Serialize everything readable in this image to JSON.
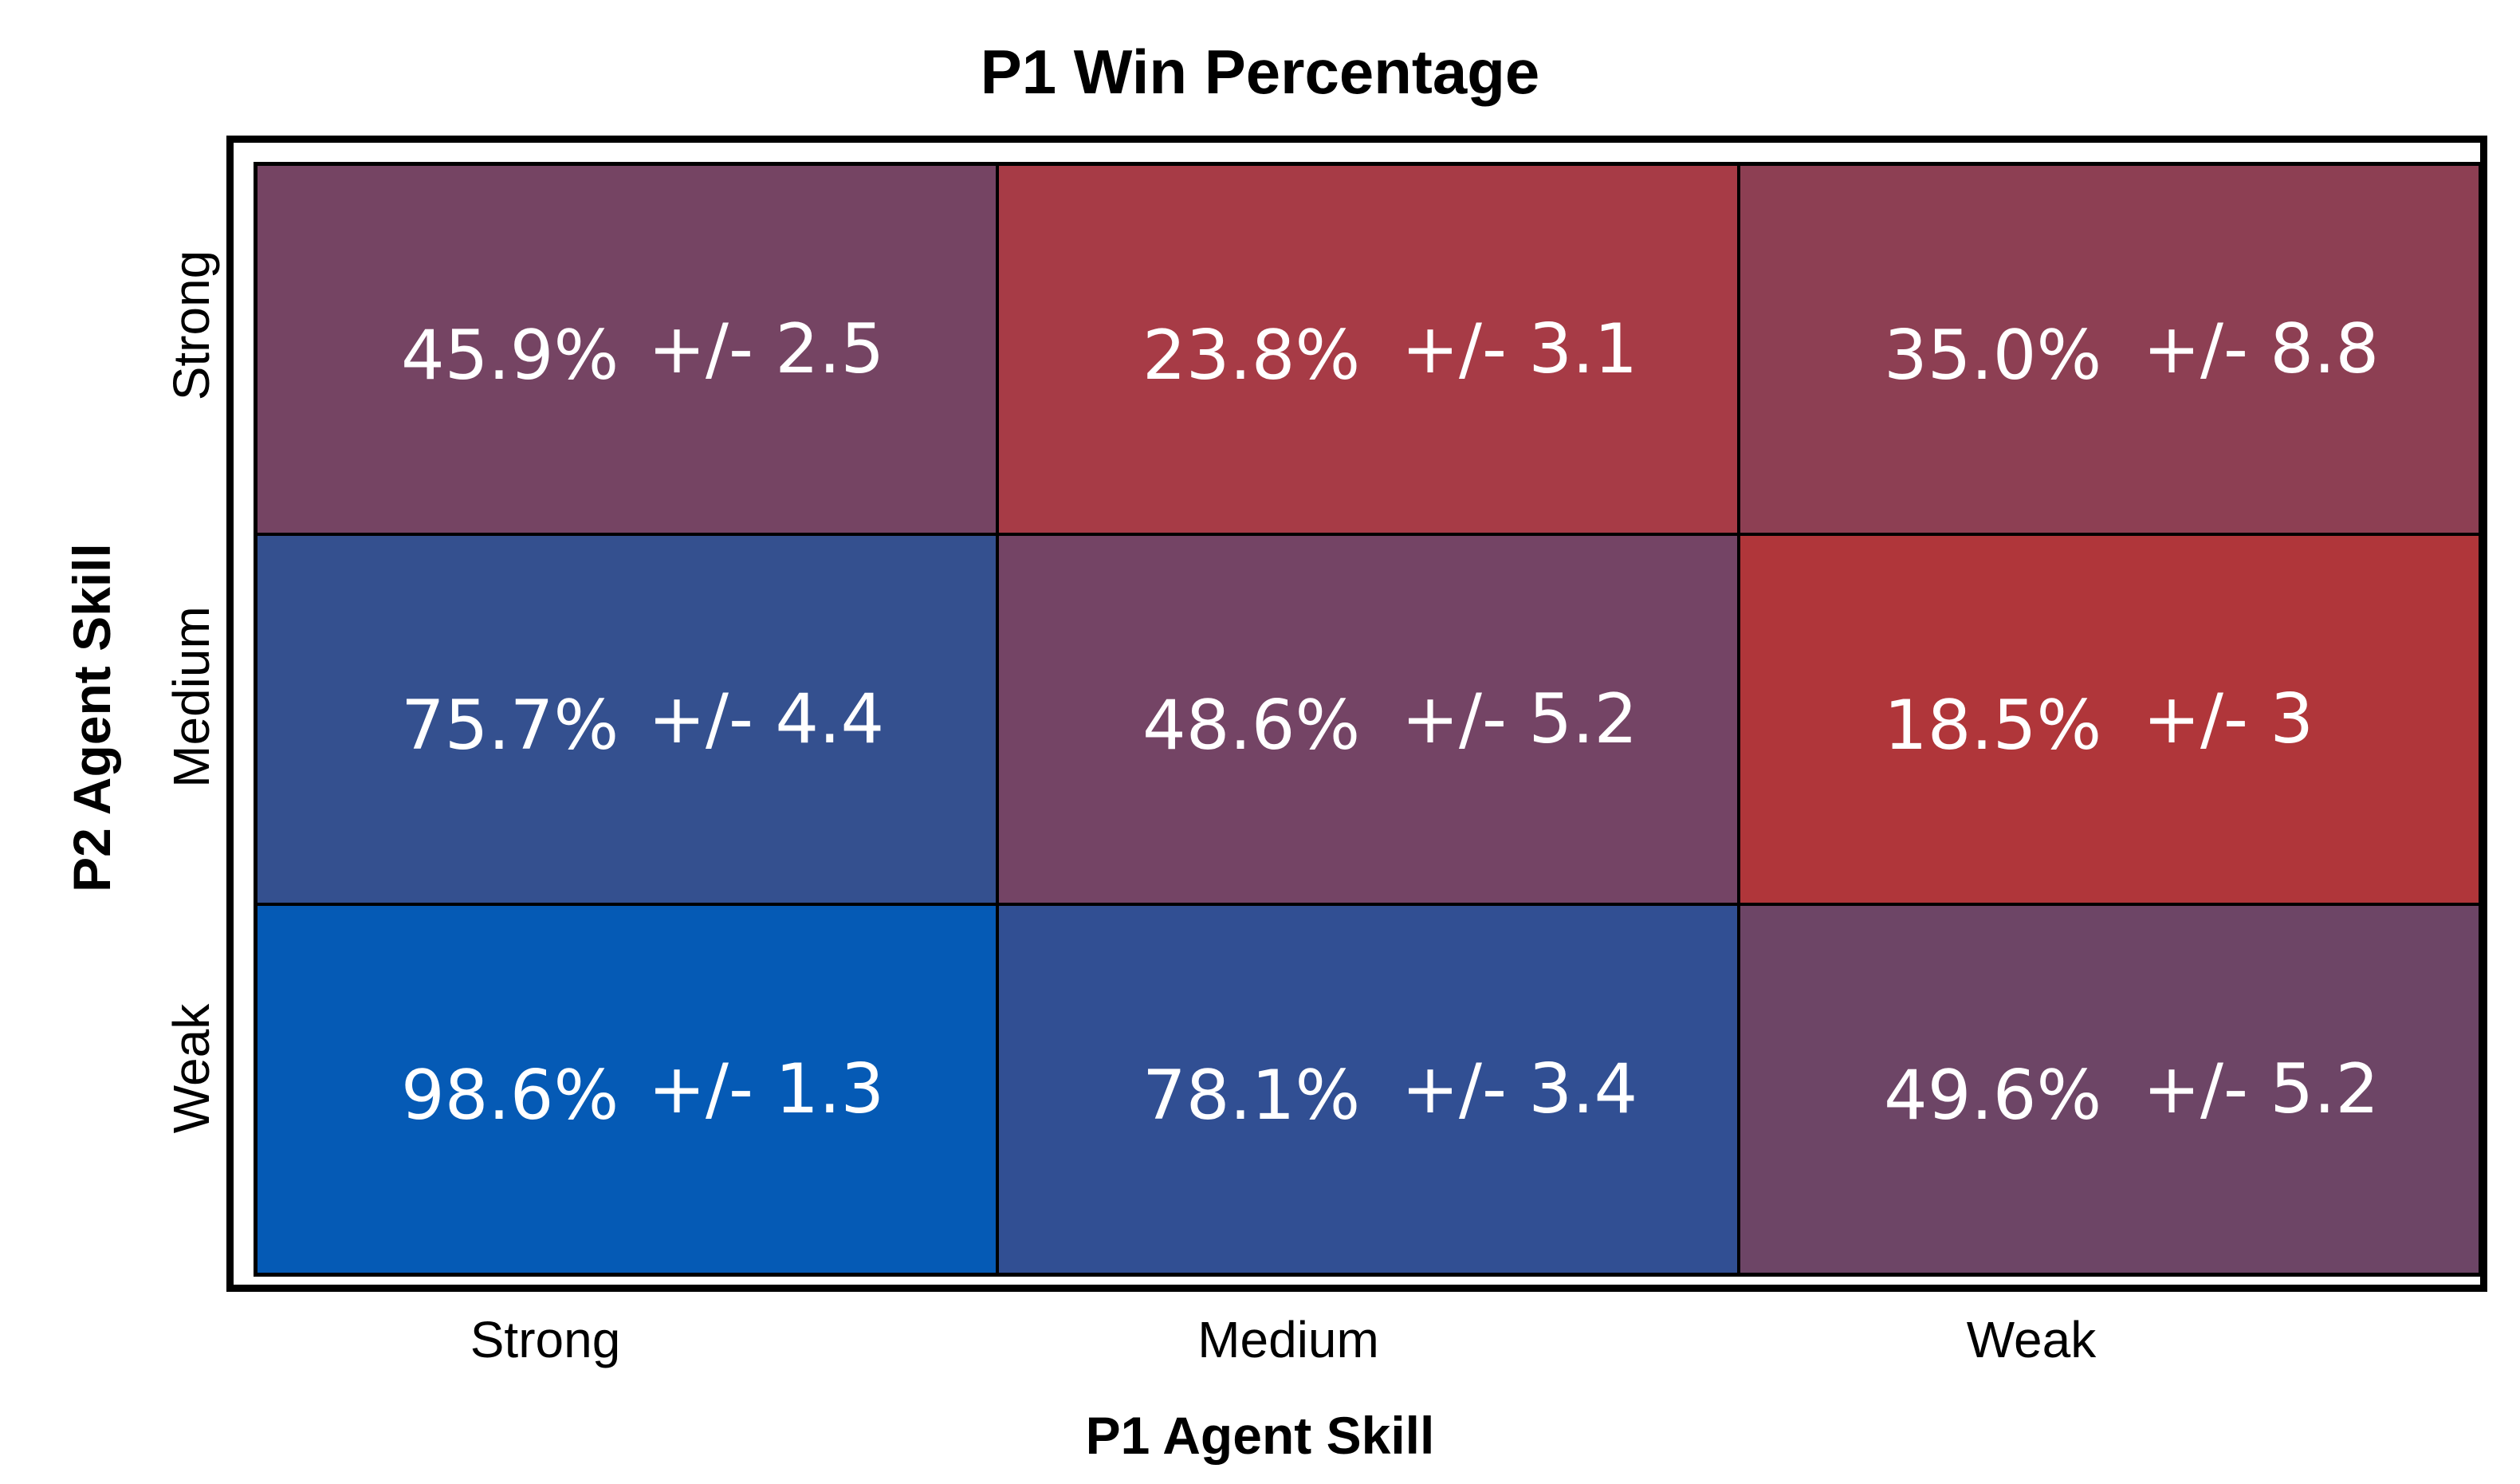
{
  "chart_data": {
    "type": "heatmap",
    "title": "P1 Win Percentage",
    "xlabel": "P1 Agent Skill",
    "ylabel": "P2 Agent Skill",
    "x_categories": [
      "Strong",
      "Medium",
      "Weak"
    ],
    "y_categories": [
      "Strong",
      "Medium",
      "Weak"
    ],
    "values": [
      [
        45.9,
        23.8,
        35.0
      ],
      [
        75.7,
        48.6,
        18.5
      ],
      [
        98.6,
        78.1,
        49.6
      ]
    ],
    "errors": [
      [
        2.5,
        3.1,
        8.8
      ],
      [
        4.4,
        5.2,
        3
      ],
      [
        1.3,
        3.4,
        5.2
      ]
    ],
    "cell_labels": [
      [
        {
          "pct": "45.9%",
          "err": "+/- 2.5"
        },
        {
          "pct": "23.8%",
          "err": "+/- 3.1"
        },
        {
          "pct": "35.0%",
          "err": "+/- 8.8"
        }
      ],
      [
        {
          "pct": "75.7%",
          "err": "+/- 4.4"
        },
        {
          "pct": "48.6%",
          "err": "+/- 5.2"
        },
        {
          "pct": "18.5%",
          "err": "+/- 3"
        }
      ],
      [
        {
          "pct": "98.6%",
          "err": "+/- 1.3"
        },
        {
          "pct": "78.1%",
          "err": "+/- 3.4"
        },
        {
          "pct": "49.6%",
          "err": "+/- 5.2"
        }
      ]
    ],
    "cell_colors": [
      [
        "#754463",
        "#a73b46",
        "#8d3f53"
      ],
      [
        "#34508f",
        "#744465",
        "#b0363a"
      ],
      [
        "#055ab5",
        "#314f93",
        "#6d4566"
      ]
    ],
    "colors": {
      "high": "#055ab5",
      "low": "#b0363a"
    }
  }
}
